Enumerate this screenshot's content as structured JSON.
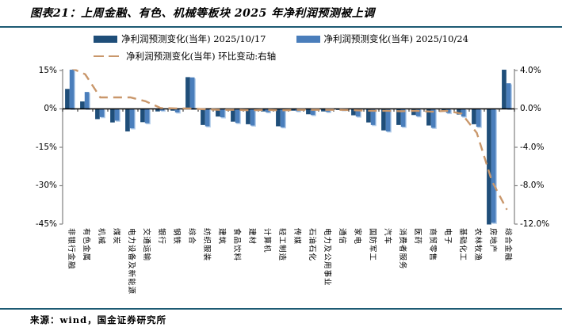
{
  "header": {
    "title": "图表21：上周金融、有色、机械等板块 2025 年净利润预测被上调"
  },
  "legend": {
    "items": [
      {
        "label": "净利润预测变化(当年) 2025/10/17",
        "type": "bar",
        "color": "#1f4e79"
      },
      {
        "label": "净利润预测变化(当年) 2025/10/24",
        "type": "bar",
        "color": "#4a7ebb"
      },
      {
        "label": "净利润预测变化(当年) 环比变动:右轴",
        "type": "dashed-line",
        "color": "#c9976b"
      }
    ]
  },
  "footer": {
    "source": "来源：wind，国金证券研究所"
  },
  "chart_data": {
    "type": "bar",
    "title": "图表21：上周金融、有色、机械等板块 2025 年净利润预测被上调",
    "categories": [
      "非银行金融",
      "有色金属",
      "机械",
      "煤炭",
      "电力设备及新能源",
      "交通运输",
      "银行",
      "钢铁",
      "综合",
      "纺织服装",
      "建筑",
      "食品饮料",
      "建材",
      "计算机",
      "轻工制造",
      "传媒",
      "石油石化",
      "电力及公用事业",
      "通信",
      "家电",
      "国防军工",
      "汽车",
      "消费者服务",
      "医药",
      "商贸零售",
      "电子",
      "基础化工",
      "农林牧渔",
      "房地产",
      "综合金融"
    ],
    "series": [
      {
        "name": "净利润预测变化(当年) 2025/10/17",
        "type": "bar",
        "axis": "left",
        "color": "#1f4e79",
        "values": [
          7.8,
          2.9,
          -4.0,
          -5.3,
          -8.8,
          -5.2,
          -1.0,
          -0.7,
          12.4,
          -6.3,
          -3.0,
          -5.0,
          -6.0,
          -1.0,
          -6.8,
          -0.7,
          -2.1,
          -1.0,
          -0.4,
          -2.5,
          -5.3,
          -8.4,
          -6.3,
          -2.4,
          -6.5,
          -1.1,
          -2.2,
          -6.0,
          -45.2,
          15.3
        ]
      },
      {
        "name": "净利润预测变化(当年) 2025/10/24",
        "type": "bar",
        "axis": "left",
        "color": "#4a7ebb",
        "values": [
          15.3,
          6.6,
          -3.2,
          -4.6,
          -7.6,
          -5.6,
          -0.7,
          -1.4,
          12.3,
          -6.8,
          -3.3,
          -5.5,
          -6.5,
          -1.3,
          -7.2,
          -0.9,
          -2.4,
          -1.2,
          -0.5,
          -3.0,
          -6.3,
          -8.8,
          -7.0,
          -2.9,
          -7.4,
          -1.6,
          -3.0,
          -7.0,
          -44.5,
          10.0
        ]
      },
      {
        "name": "净利润预测变化(当年) 环比变动:右轴",
        "type": "line",
        "style": "dashed",
        "axis": "right",
        "color": "#c9976b",
        "values": [
          4.3,
          3.6,
          1.2,
          1.2,
          1.2,
          0.8,
          0.1,
          0.05,
          0.05,
          -0.05,
          -0.1,
          -0.1,
          -0.15,
          -0.1,
          -0.15,
          -0.1,
          -0.1,
          -0.1,
          -0.1,
          -0.15,
          -0.2,
          -0.2,
          -0.25,
          -0.2,
          -0.3,
          -0.2,
          -0.5,
          -2.5,
          -7.5,
          -10.5
        ]
      }
    ],
    "left_axis": {
      "ticks": [
        "15%",
        "0%",
        "-15%",
        "-30%",
        "-45%"
      ],
      "max": 15,
      "min": -45
    },
    "right_axis": {
      "ticks": [
        "4.0%",
        "0.0%",
        "-4.0%",
        "-8.0%",
        "-12.0%"
      ],
      "max": 4,
      "min": -12
    },
    "grid": false,
    "legend_position": "top"
  }
}
